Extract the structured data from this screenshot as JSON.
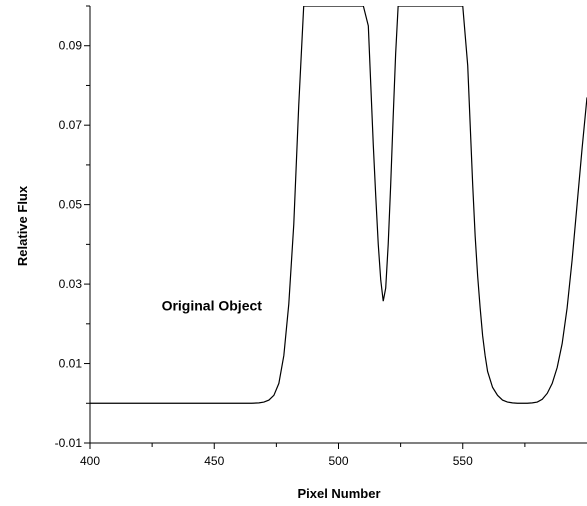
{
  "chart_data": {
    "type": "line",
    "title": "",
    "xlabel": "Pixel Number",
    "ylabel": "Relative Flux",
    "xlim": [
      400,
      600
    ],
    "ylim": [
      -0.01,
      0.1
    ],
    "x_ticks": [
      400,
      450,
      500,
      550
    ],
    "x_tick_labels": [
      "400",
      "450",
      "500",
      "550"
    ],
    "y_ticks": [
      -0.01,
      0.01,
      0.03,
      0.05,
      0.07,
      0.09
    ],
    "y_tick_labels": [
      "-0.01",
      "0.01",
      "0.03",
      "0.05",
      "0.07",
      "0.09"
    ],
    "grid": false,
    "annotations": [
      {
        "text": "Original Object",
        "x": 449,
        "y": 0.0234
      }
    ],
    "series": [
      {
        "x": [
          400,
          420,
          440,
          460,
          465,
          468,
          470,
          472,
          474,
          476,
          478,
          480,
          482,
          484,
          486,
          510,
          512,
          513,
          514,
          515,
          516,
          517,
          518,
          519,
          520,
          521,
          522,
          523,
          524,
          550,
          552,
          553,
          554,
          555,
          556,
          557,
          558,
          559,
          560,
          562,
          564,
          566,
          568,
          570,
          572,
          574,
          576,
          578,
          580,
          582,
          584,
          586,
          588,
          590,
          592,
          594,
          596,
          598,
          600
        ],
        "y": [
          0.0,
          0.0,
          0.0,
          0.0,
          0.0,
          0.0001,
          0.0003,
          0.0008,
          0.002,
          0.005,
          0.012,
          0.025,
          0.045,
          0.075,
          0.1,
          0.1,
          0.095,
          0.08,
          0.065,
          0.052,
          0.04,
          0.031,
          0.0257,
          0.029,
          0.04,
          0.055,
          0.072,
          0.088,
          0.1,
          0.1,
          0.085,
          0.07,
          0.055,
          0.042,
          0.032,
          0.024,
          0.017,
          0.012,
          0.008,
          0.004,
          0.002,
          0.0008,
          0.0003,
          0.0001,
          0.0,
          0.0,
          0.0,
          0.0001,
          0.0003,
          0.001,
          0.0025,
          0.005,
          0.009,
          0.015,
          0.024,
          0.036,
          0.05,
          0.064,
          0.077
        ]
      }
    ]
  }
}
